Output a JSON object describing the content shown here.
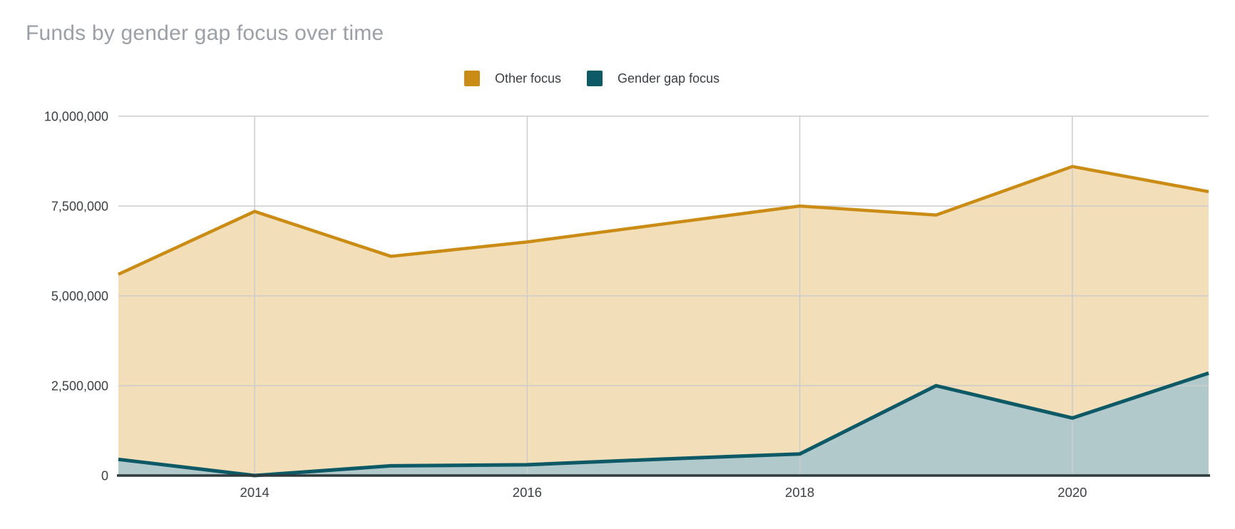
{
  "title": "Funds by gender gap focus over time",
  "legend": [
    {
      "label": "Other focus",
      "color": "#CB8C15"
    },
    {
      "label": "Gender gap focus",
      "color": "#0D5966"
    }
  ],
  "colors": {
    "title_text": "#9AA0A6",
    "axis_text": "#3C4043",
    "legend_text": "#3C4043",
    "grid": "#CCCCCC",
    "baseline": "#2F3A3D",
    "other_line": "#CB8C15",
    "other_fill": "#F2DFBA",
    "gender_line": "#0D5966",
    "gender_fill": "#B2C9CC"
  },
  "chart_data": {
    "type": "area",
    "stacked": true,
    "title": "Funds by gender gap focus over time",
    "xlabel": "",
    "ylabel": "",
    "x": [
      2013,
      2014,
      2015,
      2016,
      2017,
      2018,
      2019,
      2020,
      2021
    ],
    "series": [
      {
        "name": "Gender gap focus",
        "stack_position": "bottom",
        "values": [
          450000,
          0,
          270000,
          300000,
          460000,
          600000,
          2500000,
          1600000,
          2850000
        ],
        "line_color": "#0D5966",
        "fill_color": "#B2C9CC"
      },
      {
        "name": "Other focus",
        "stack_position": "top",
        "values": [
          5150000,
          7350000,
          5830000,
          6200000,
          6540000,
          6900000,
          4750000,
          7000000,
          5050000
        ],
        "stacked_totals": [
          5600000,
          7350000,
          6100000,
          6500000,
          7000000,
          7500000,
          7250000,
          8600000,
          7900000
        ],
        "line_color": "#CB8C15",
        "fill_color": "#F2DFBA"
      }
    ],
    "x_ticks": [
      {
        "value": 2014,
        "label": "2014"
      },
      {
        "value": 2016,
        "label": "2016"
      },
      {
        "value": 2018,
        "label": "2018"
      },
      {
        "value": 2020,
        "label": "2020"
      }
    ],
    "y_ticks": [
      {
        "value": 10000000,
        "label": "10,000,000"
      },
      {
        "value": 7500000,
        "label": "7,500,000"
      },
      {
        "value": 5000000,
        "label": "5,000,000"
      },
      {
        "value": 2500000,
        "label": "2,500,000"
      },
      {
        "value": 0,
        "label": "0"
      }
    ],
    "ylim": [
      0,
      10000000
    ],
    "grid": true,
    "legend_position": "top"
  }
}
